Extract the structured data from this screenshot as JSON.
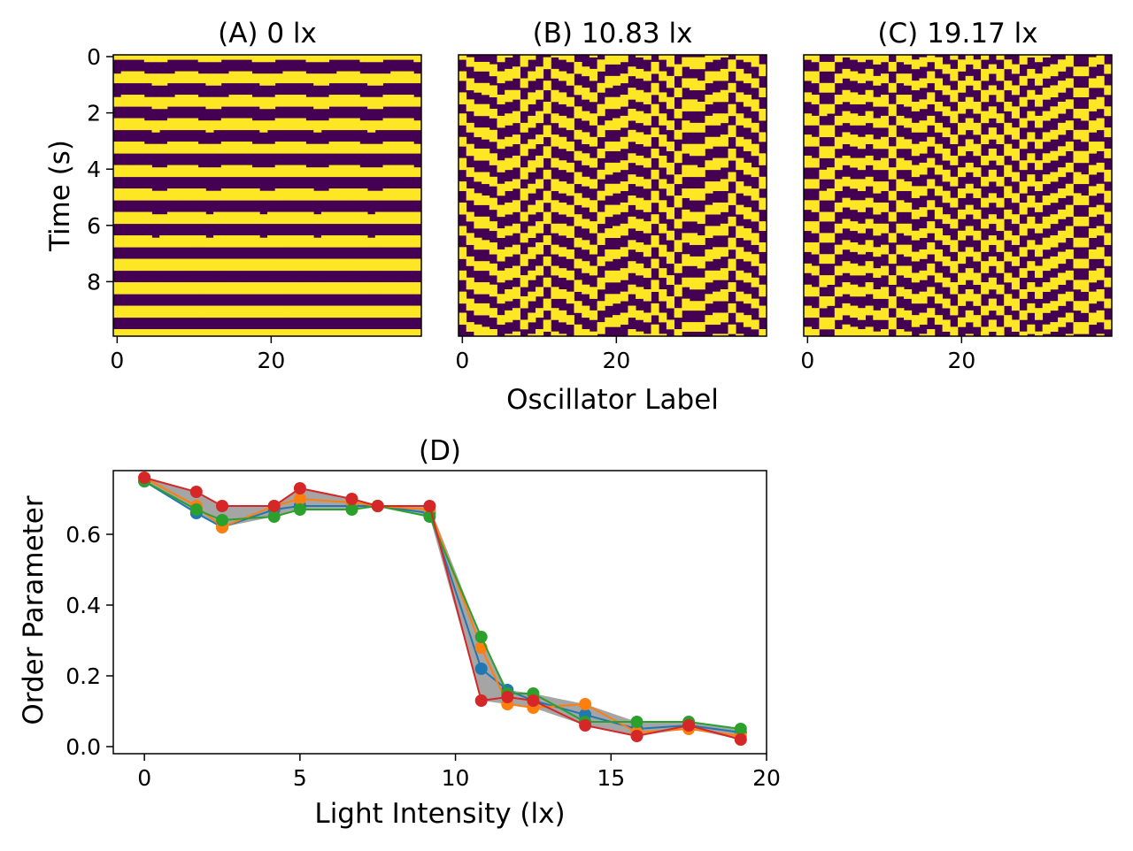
{
  "chart_data": [
    {
      "panel": "A",
      "type": "heatmap",
      "title": "(A) 0 lx",
      "xlabel": "",
      "ylabel": "Time (s)",
      "x_range": [
        0,
        39
      ],
      "y_range": [
        0,
        10
      ],
      "x_ticks": [
        0,
        20
      ],
      "y_ticks": [
        0,
        2,
        4,
        6,
        8
      ],
      "pattern": "synchronized",
      "colors": {
        "high": "#fde725",
        "low": "#440154"
      }
    },
    {
      "panel": "B",
      "type": "heatmap",
      "title": "(B) 10.83 lx",
      "xlabel": "Oscillator Label",
      "ylabel": "",
      "x_range": [
        0,
        39
      ],
      "y_range": [
        0,
        10
      ],
      "x_ticks": [
        0,
        20
      ],
      "pattern": "traveling-waves",
      "colors": {
        "high": "#fde725",
        "low": "#440154"
      }
    },
    {
      "panel": "C",
      "type": "heatmap",
      "title": "(C) 19.17 lx",
      "xlabel": "",
      "ylabel": "",
      "x_range": [
        0,
        39
      ],
      "y_range": [
        0,
        10
      ],
      "x_ticks": [
        0,
        20
      ],
      "pattern": "desynchronized",
      "colors": {
        "high": "#fde725",
        "low": "#440154"
      }
    },
    {
      "panel": "D",
      "type": "line",
      "title": "(D)",
      "xlabel": "Light Intensity (lx)",
      "ylabel": "Order Parameter",
      "xlim": [
        -1,
        20
      ],
      "ylim": [
        -0.02,
        0.78
      ],
      "x_ticks": [
        0,
        5,
        10,
        15,
        20
      ],
      "y_ticks": [
        "0.0",
        "0.2",
        "0.4",
        "0.6"
      ],
      "x": [
        0,
        1.67,
        2.5,
        4.17,
        5.0,
        6.67,
        7.5,
        9.17,
        10.83,
        11.67,
        12.5,
        14.17,
        15.83,
        17.5,
        19.17
      ],
      "series": [
        {
          "color": "#1f77b4",
          "values": [
            0.75,
            0.66,
            0.62,
            0.67,
            0.68,
            0.68,
            0.68,
            0.66,
            0.22,
            0.16,
            0.13,
            0.09,
            0.05,
            0.06,
            0.04
          ]
        },
        {
          "color": "#ff7f0e",
          "values": [
            0.76,
            0.68,
            0.62,
            0.68,
            0.7,
            0.69,
            0.68,
            0.67,
            0.28,
            0.12,
            0.11,
            0.12,
            0.04,
            0.05,
            0.03
          ]
        },
        {
          "color": "#2ca02c",
          "values": [
            0.75,
            0.67,
            0.64,
            0.65,
            0.67,
            0.67,
            0.68,
            0.65,
            0.31,
            0.15,
            0.15,
            0.07,
            0.07,
            0.07,
            0.05
          ]
        },
        {
          "color": "#d62728",
          "values": [
            0.76,
            0.72,
            0.68,
            0.68,
            0.73,
            0.7,
            0.68,
            0.68,
            0.13,
            0.14,
            0.13,
            0.06,
            0.03,
            0.06,
            0.02
          ]
        }
      ],
      "band_color": "#7f7f7f"
    }
  ]
}
